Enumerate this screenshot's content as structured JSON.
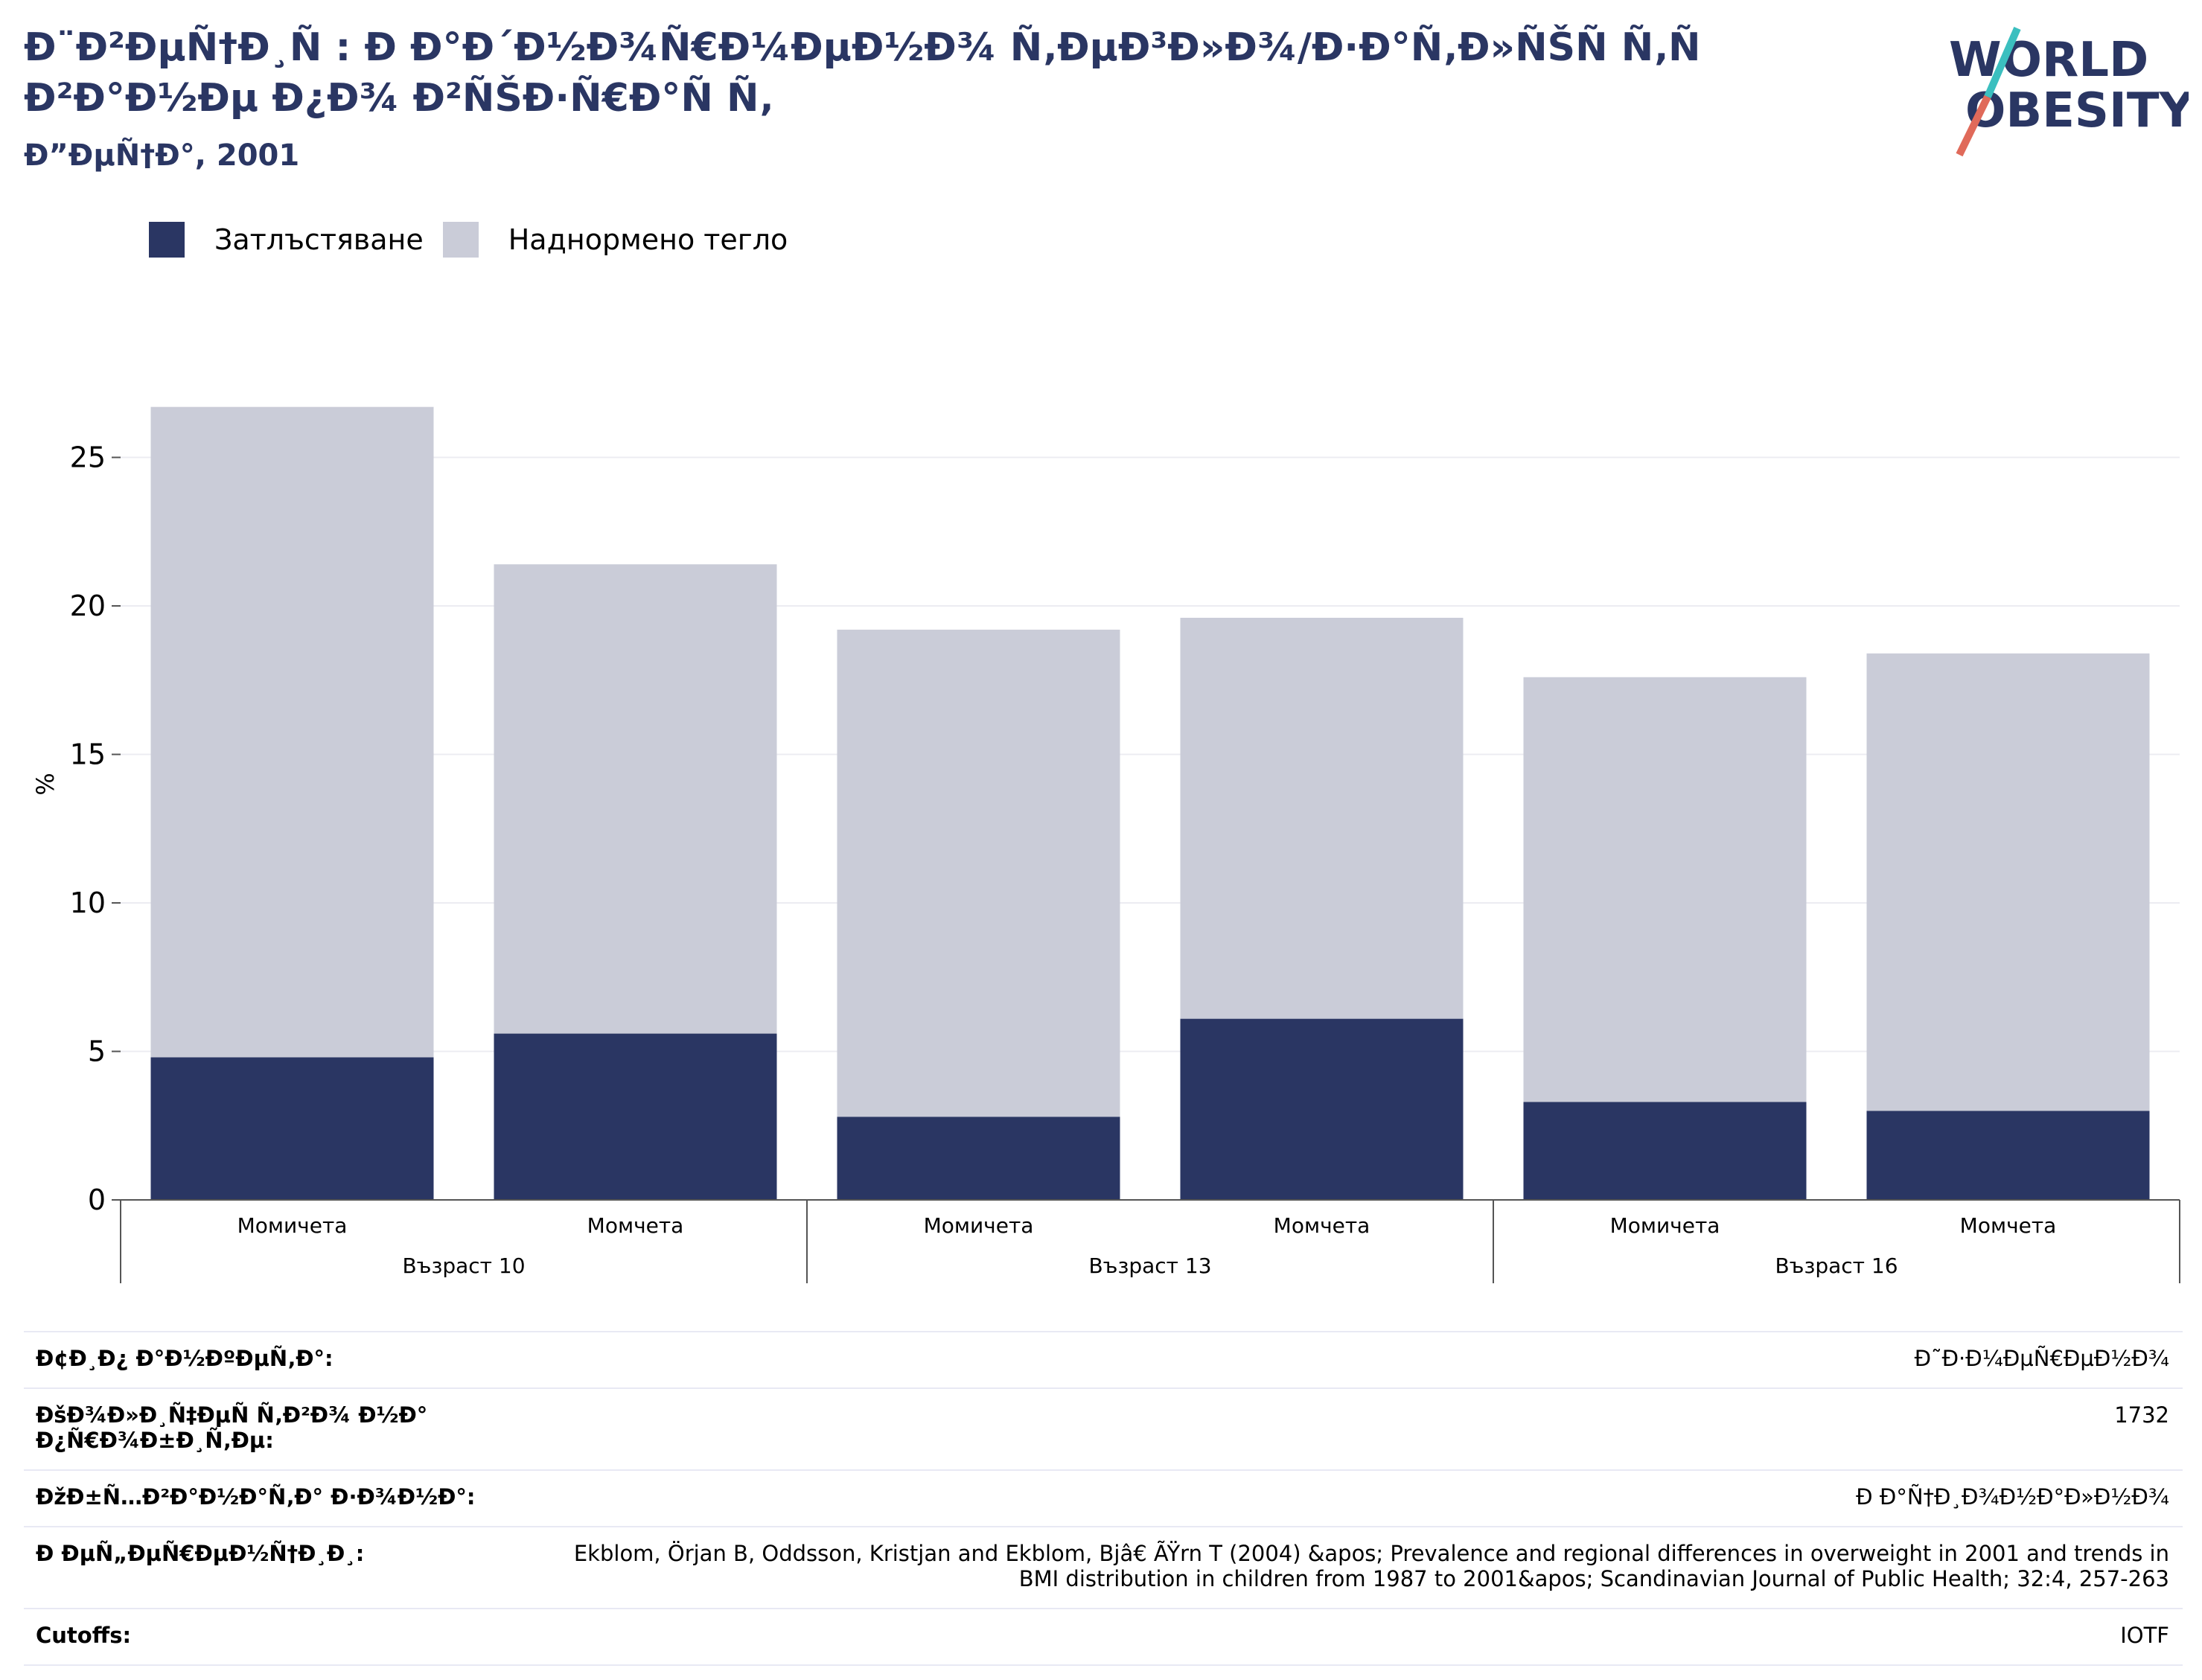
{
  "header": {
    "title": "Ð¨Ð²ÐµÑ†Ð¸Ñ : Ð Ð°Ð´Ð½Ð¾Ñ€Ð¼ÐµÐ½Ð¾ Ñ‚ÐµÐ³Ð»Ð¾/Ð·Ð°Ñ‚Ð»ÑŠÑ Ñ‚Ñ Ð²Ð°Ð½Ðµ Ð¿Ð¾ Ð²ÑŠÐ·Ñ€Ð°Ñ Ñ‚",
    "subtitle": "Ð”ÐµÑ†Ð°, 2001",
    "logo_text": "WORLD OBESITY"
  },
  "colors": {
    "obesity": "#2a3663",
    "overweight": "#caccd8",
    "title": "#2a3663",
    "logo_slash_top": "#3bbfbf",
    "logo_slash_bottom": "#e06a5a"
  },
  "legend": {
    "items": [
      {
        "label": "Затлъстяване",
        "color": "#2a3663"
      },
      {
        "label": "Наднормено тегло",
        "color": "#caccd8"
      }
    ]
  },
  "chart_data": {
    "type": "bar",
    "stacked": true,
    "ylabel": "%",
    "ylim": [
      0,
      28
    ],
    "yticks": [
      0,
      5,
      10,
      15,
      20,
      25
    ],
    "grid": true,
    "legend_position": "top-left",
    "categories": [
      "Момичета",
      "Момчета",
      "Момичета",
      "Момчета",
      "Момичета",
      "Момчета"
    ],
    "groups": [
      {
        "label": "Възраст 10",
        "categories": [
          "Момичета",
          "Момчета"
        ]
      },
      {
        "label": "Възраст 13",
        "categories": [
          "Момичета",
          "Момчета"
        ]
      },
      {
        "label": "Възраст 16",
        "categories": [
          "Момичета",
          "Момчета"
        ]
      }
    ],
    "series": [
      {
        "name": "Затлъстяване",
        "values": [
          4.8,
          5.6,
          2.8,
          6.1,
          3.3,
          3.0
        ]
      },
      {
        "name": "Наднормено тегло",
        "values": [
          21.9,
          15.8,
          16.4,
          13.5,
          14.3,
          15.4
        ]
      }
    ]
  },
  "meta": {
    "rows": [
      {
        "key": "Ð¢Ð¸Ð¿ Ð°Ð½ÐºÐµÑ‚Ð°:",
        "value": "Ð˜Ð·Ð¼ÐµÑ€ÐµÐ½Ð¾"
      },
      {
        "key": "ÐšÐ¾Ð»Ð¸Ñ‡ÐµÑ Ñ‚Ð²Ð¾ Ð½Ð° Ð¿Ñ€Ð¾Ð±Ð¸Ñ‚Ðµ:",
        "value": "1732"
      },
      {
        "key": "ÐžÐ±Ñ…Ð²Ð°Ð½Ð°Ñ‚Ð° Ð·Ð¾Ð½Ð°:",
        "value": "Ð Ð°Ñ†Ð¸Ð¾Ð½Ð°Ð»Ð½Ð¾"
      },
      {
        "key": "Ð ÐµÑ„ÐµÑ€ÐµÐ½Ñ†Ð¸Ð¸:",
        "value": "Ekblom, Örjan B, Oddsson, Kristjan and Ekblom, Bjâ€ ÃŸrn T (2004) &apos; Prevalence and regional differences in overweight in 2001 and trends in BMI distribution in children from 1987 to 2001&apos; Scandinavian Journal of Public Health; 32:4, 257-263"
      },
      {
        "key": "Cutoffs:",
        "value": "IOTF"
      }
    ]
  }
}
